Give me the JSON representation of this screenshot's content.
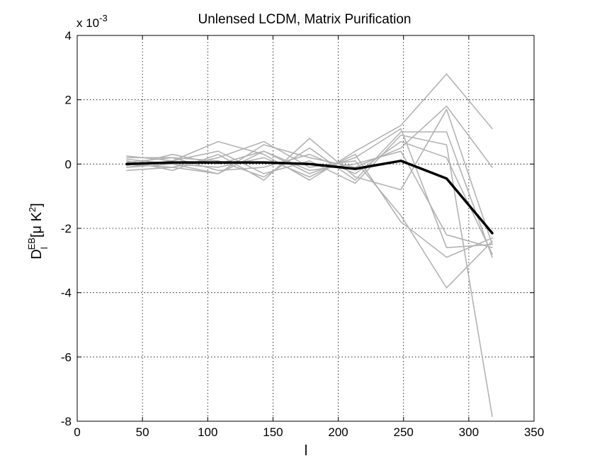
{
  "chart_data": {
    "type": "line",
    "title": "Unlensed LCDM, Matrix Purification",
    "xlabel": "l",
    "ylabel": {
      "base": "D",
      "subscript": "l",
      "superscript": "EB",
      "units_prefix": "[μ K",
      "units_sup": "2",
      "units_suffix": "]"
    },
    "y_multiplier": {
      "text": "x 10",
      "exponent": "-3"
    },
    "xlim": [
      0,
      350
    ],
    "ylim": [
      -8,
      4
    ],
    "xticks": [
      0,
      50,
      100,
      150,
      200,
      250,
      300,
      350
    ],
    "yticks": [
      -8,
      -6,
      -4,
      -2,
      0,
      2,
      4
    ],
    "grid": true,
    "x": [
      38,
      73,
      108,
      143,
      178,
      213,
      248,
      283,
      318
    ],
    "series": [
      {
        "values": [
          0.25,
          0.1,
          0.7,
          0.3,
          -0.5,
          0.4,
          1.2,
          2.8,
          1.1
        ],
        "color": "#b3b3b3"
      },
      {
        "values": [
          -0.1,
          0.0,
          -0.3,
          0.6,
          0.2,
          -0.1,
          0.5,
          1.8,
          -0.1
        ],
        "color": "#b3b3b3"
      },
      {
        "values": [
          0.1,
          -0.2,
          0.3,
          -0.5,
          0.8,
          -0.4,
          -0.8,
          1.7,
          -2.5
        ],
        "color": "#b3b3b3"
      },
      {
        "values": [
          -0.05,
          0.3,
          0.0,
          0.4,
          -0.3,
          0.2,
          1.1,
          -2.6,
          -2.5
        ],
        "color": "#b3b3b3"
      },
      {
        "values": [
          0.2,
          0.2,
          -0.2,
          -0.1,
          0.3,
          -0.3,
          0.7,
          0.2,
          -2.8
        ],
        "color": "#b3b3b3"
      },
      {
        "values": [
          0.0,
          -0.1,
          0.2,
          0.7,
          -0.1,
          0.1,
          -1.6,
          -3.85,
          -2.4
        ],
        "color": "#b3b3b3"
      },
      {
        "values": [
          -0.1,
          0.1,
          0.4,
          -0.3,
          0.1,
          -0.6,
          0.9,
          0.6,
          -7.85
        ],
        "color": "#b3b3b3"
      },
      {
        "values": [
          0.15,
          0.0,
          -0.1,
          0.2,
          -0.4,
          0.3,
          -1.8,
          -2.9,
          -2.3
        ],
        "color": "#b3b3b3"
      },
      {
        "values": [
          0.05,
          0.2,
          0.1,
          -0.4,
          0.5,
          -0.5,
          1.0,
          1.0,
          -2.9
        ],
        "color": "#b3b3b3"
      },
      {
        "values": [
          -0.2,
          -0.1,
          -0.3,
          0.4,
          -0.2,
          0.0,
          0.4,
          -2.2,
          -2.6
        ],
        "color": "#b3b3b3"
      },
      {
        "values": [
          0.0,
          0.05,
          0.05,
          0.05,
          0.0,
          -0.15,
          0.1,
          -0.45,
          -2.15
        ],
        "color": "#000000",
        "bold": true
      }
    ]
  }
}
